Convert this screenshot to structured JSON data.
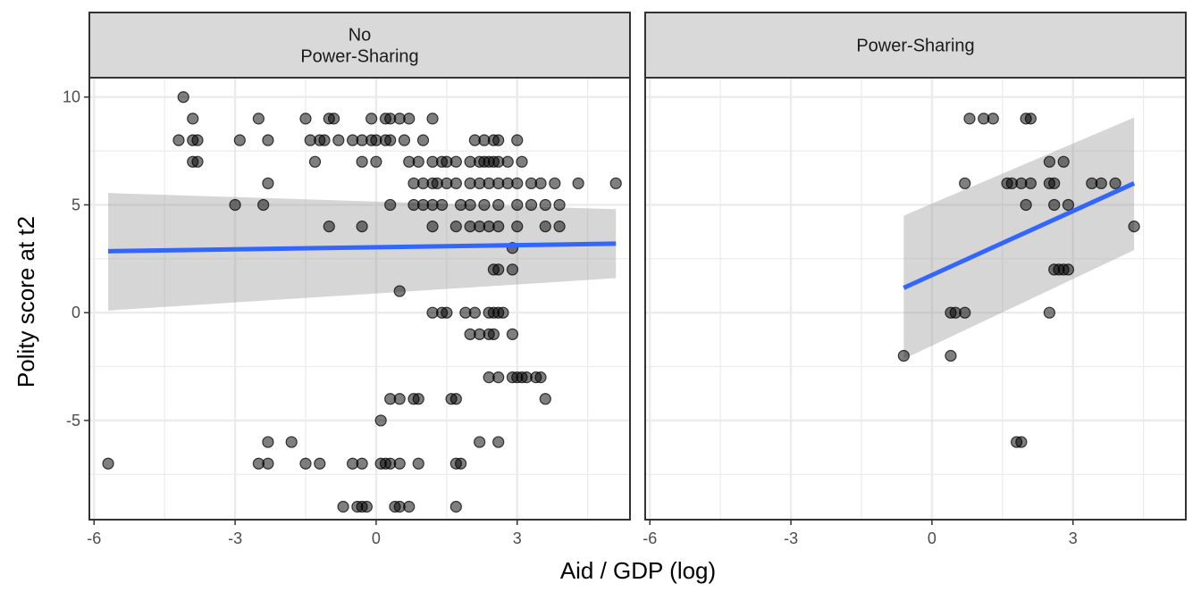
{
  "chart_data": {
    "type": "scatter",
    "xlabel": "Aid / GDP (log)",
    "ylabel": "Polity score at t2",
    "xlim": [
      -6.1,
      5.4
    ],
    "ylim": [
      -9.6,
      10.9
    ],
    "x_ticks": [
      -6,
      -3,
      0,
      3
    ],
    "x_tick_labels": [
      "-6",
      "-3",
      "0",
      "3"
    ],
    "y_ticks": [
      -5,
      0,
      5,
      10
    ],
    "y_tick_labels": [
      "-5",
      "0",
      "5",
      "10"
    ],
    "grid": true,
    "facets": [
      {
        "label_lines": [
          "No",
          "Power-Sharing"
        ],
        "fit": {
          "x": [
            -5.7,
            5.1
          ],
          "y": [
            2.85,
            3.2
          ],
          "ci_lower_y": [
            0.1,
            1.6
          ],
          "ci_upper_y": [
            5.55,
            4.8
          ]
        },
        "points": [
          [
            -4.1,
            10
          ],
          [
            -3.9,
            9
          ],
          [
            -2.5,
            9
          ],
          [
            -1.5,
            9
          ],
          [
            -1.0,
            9
          ],
          [
            -0.9,
            9
          ],
          [
            -0.1,
            9
          ],
          [
            0.2,
            9
          ],
          [
            0.3,
            9
          ],
          [
            0.5,
            9
          ],
          [
            0.7,
            9
          ],
          [
            1.2,
            9
          ],
          [
            -4.2,
            8
          ],
          [
            -3.9,
            8
          ],
          [
            -3.8,
            8
          ],
          [
            -2.9,
            8
          ],
          [
            -2.3,
            8
          ],
          [
            -1.4,
            8
          ],
          [
            -1.2,
            8
          ],
          [
            -1.1,
            8
          ],
          [
            -0.8,
            8
          ],
          [
            -0.5,
            8
          ],
          [
            -0.3,
            8
          ],
          [
            -0.1,
            8
          ],
          [
            0.0,
            8
          ],
          [
            0.2,
            8
          ],
          [
            0.3,
            8
          ],
          [
            0.6,
            8
          ],
          [
            1.0,
            8
          ],
          [
            2.1,
            8
          ],
          [
            2.3,
            8
          ],
          [
            2.5,
            8
          ],
          [
            2.6,
            8
          ],
          [
            3.0,
            8
          ],
          [
            -3.9,
            7
          ],
          [
            -3.8,
            7
          ],
          [
            -1.3,
            7
          ],
          [
            -0.3,
            7
          ],
          [
            0.0,
            7
          ],
          [
            0.7,
            7
          ],
          [
            0.9,
            7
          ],
          [
            1.2,
            7
          ],
          [
            1.4,
            7
          ],
          [
            1.5,
            7
          ],
          [
            1.7,
            7
          ],
          [
            2.0,
            7
          ],
          [
            2.2,
            7
          ],
          [
            2.3,
            7
          ],
          [
            2.4,
            7
          ],
          [
            2.5,
            7
          ],
          [
            2.6,
            7
          ],
          [
            2.8,
            7
          ],
          [
            3.1,
            7
          ],
          [
            -2.3,
            6
          ],
          [
            0.8,
            6
          ],
          [
            1.0,
            6
          ],
          [
            1.2,
            6
          ],
          [
            1.3,
            6
          ],
          [
            1.5,
            6
          ],
          [
            1.7,
            6
          ],
          [
            2.0,
            6
          ],
          [
            2.2,
            6
          ],
          [
            2.4,
            6
          ],
          [
            2.6,
            6
          ],
          [
            2.8,
            6
          ],
          [
            3.0,
            6
          ],
          [
            3.3,
            6
          ],
          [
            3.5,
            6
          ],
          [
            3.8,
            6
          ],
          [
            4.3,
            6
          ],
          [
            5.1,
            6
          ],
          [
            -3.0,
            5
          ],
          [
            -2.4,
            5
          ],
          [
            0.3,
            5
          ],
          [
            0.8,
            5
          ],
          [
            1.0,
            5
          ],
          [
            1.2,
            5
          ],
          [
            1.4,
            5
          ],
          [
            1.8,
            5
          ],
          [
            2.0,
            5
          ],
          [
            2.3,
            5
          ],
          [
            2.6,
            5
          ],
          [
            3.0,
            5
          ],
          [
            3.3,
            5
          ],
          [
            3.6,
            5
          ],
          [
            3.9,
            5
          ],
          [
            -1.0,
            4
          ],
          [
            -0.3,
            4
          ],
          [
            1.2,
            4
          ],
          [
            1.7,
            4
          ],
          [
            2.0,
            4
          ],
          [
            2.2,
            4
          ],
          [
            2.4,
            4
          ],
          [
            2.6,
            4
          ],
          [
            3.0,
            4
          ],
          [
            3.6,
            4
          ],
          [
            3.9,
            4
          ],
          [
            2.9,
            3
          ],
          [
            2.5,
            2
          ],
          [
            2.6,
            2
          ],
          [
            2.9,
            2
          ],
          [
            0.5,
            1
          ],
          [
            1.2,
            0
          ],
          [
            1.4,
            0
          ],
          [
            1.5,
            0
          ],
          [
            1.9,
            0
          ],
          [
            2.1,
            0
          ],
          [
            2.4,
            0
          ],
          [
            2.5,
            0
          ],
          [
            2.6,
            0
          ],
          [
            2.7,
            0
          ],
          [
            2.0,
            -1
          ],
          [
            2.2,
            -1
          ],
          [
            2.4,
            -1
          ],
          [
            2.5,
            -1
          ],
          [
            2.9,
            -1
          ],
          [
            2.4,
            -3
          ],
          [
            2.6,
            -3
          ],
          [
            2.9,
            -3
          ],
          [
            3.0,
            -3
          ],
          [
            3.1,
            -3
          ],
          [
            3.2,
            -3
          ],
          [
            3.4,
            -3
          ],
          [
            3.5,
            -3
          ],
          [
            0.3,
            -4
          ],
          [
            0.5,
            -4
          ],
          [
            0.8,
            -4
          ],
          [
            0.9,
            -4
          ],
          [
            1.6,
            -4
          ],
          [
            1.7,
            -4
          ],
          [
            3.6,
            -4
          ],
          [
            0.1,
            -5
          ],
          [
            -2.3,
            -6
          ],
          [
            -1.8,
            -6
          ],
          [
            2.2,
            -6
          ],
          [
            2.6,
            -6
          ],
          [
            -5.7,
            -7
          ],
          [
            -2.5,
            -7
          ],
          [
            -2.3,
            -7
          ],
          [
            -1.5,
            -7
          ],
          [
            -1.2,
            -7
          ],
          [
            -0.5,
            -7
          ],
          [
            -0.3,
            -7
          ],
          [
            0.1,
            -7
          ],
          [
            0.2,
            -7
          ],
          [
            0.3,
            -7
          ],
          [
            0.5,
            -7
          ],
          [
            0.9,
            -7
          ],
          [
            1.7,
            -7
          ],
          [
            1.8,
            -7
          ],
          [
            -0.7,
            -9
          ],
          [
            -0.4,
            -9
          ],
          [
            -0.3,
            -9
          ],
          [
            -0.2,
            -9
          ],
          [
            0.4,
            -9
          ],
          [
            0.5,
            -9
          ],
          [
            0.7,
            -9
          ],
          [
            1.7,
            -9
          ]
        ]
      },
      {
        "label_lines": [
          "Power-Sharing"
        ],
        "fit": {
          "x": [
            -0.6,
            4.3
          ],
          "y": [
            1.15,
            6.0
          ],
          "ci_lower_y": [
            -2.15,
            2.9
          ],
          "ci_upper_y": [
            4.5,
            9.05
          ]
        },
        "points": [
          [
            0.8,
            9
          ],
          [
            1.1,
            9
          ],
          [
            1.3,
            9
          ],
          [
            2.0,
            9
          ],
          [
            2.1,
            9
          ],
          [
            2.5,
            7
          ],
          [
            2.8,
            7
          ],
          [
            0.7,
            6
          ],
          [
            1.6,
            6
          ],
          [
            1.7,
            6
          ],
          [
            1.9,
            6
          ],
          [
            2.1,
            6
          ],
          [
            2.5,
            6
          ],
          [
            2.6,
            6
          ],
          [
            3.4,
            6
          ],
          [
            3.6,
            6
          ],
          [
            3.9,
            6
          ],
          [
            2.0,
            5
          ],
          [
            2.6,
            5
          ],
          [
            2.9,
            5
          ],
          [
            4.3,
            4
          ],
          [
            2.6,
            2
          ],
          [
            2.7,
            2
          ],
          [
            2.8,
            2
          ],
          [
            2.9,
            2
          ],
          [
            0.4,
            0
          ],
          [
            0.5,
            0
          ],
          [
            0.7,
            0
          ],
          [
            2.5,
            0
          ],
          [
            -0.6,
            -2
          ],
          [
            0.4,
            -2
          ],
          [
            1.8,
            -6
          ],
          [
            1.9,
            -6
          ]
        ]
      }
    ],
    "colors": {
      "point": "#000000",
      "fit_line": "#3366ff",
      "ci_ribbon": "#999999",
      "strip_background": "#d9d9d9",
      "grid": "#ebebeb",
      "border": "#333333"
    }
  }
}
